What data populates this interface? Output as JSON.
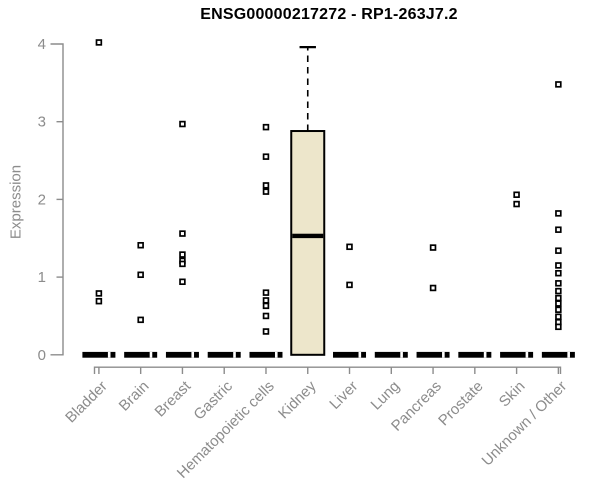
{
  "chart_data": {
    "type": "boxplot",
    "title": "ENSG00000217272 - RP1-263J7.2",
    "xlabel": "",
    "ylabel": "Expression",
    "ylim": [
      0,
      4
    ],
    "yticks": [
      0,
      1,
      2,
      3,
      4
    ],
    "categories": [
      "Bladder",
      "Brain",
      "Breast",
      "Gastric",
      "Hematopoietic cells",
      "Kidney",
      "Liver",
      "Lung",
      "Pancreas",
      "Prostate",
      "Skin",
      "Unknown / Other"
    ],
    "boxes": [
      {
        "category": "Bladder",
        "q1": 0,
        "median": 0,
        "q3": 0,
        "whisker_low": 0,
        "whisker_high": 0,
        "outliers": [
          4.02,
          0.79,
          0.69
        ]
      },
      {
        "category": "Brain",
        "q1": 0,
        "median": 0,
        "q3": 0,
        "whisker_low": 0,
        "whisker_high": 0,
        "outliers": [
          1.41,
          1.03,
          0.45
        ]
      },
      {
        "category": "Breast",
        "q1": 0,
        "median": 0,
        "q3": 0,
        "whisker_low": 0,
        "whisker_high": 0,
        "outliers": [
          2.97,
          1.56,
          1.29,
          1.21,
          1.17,
          0.94
        ]
      },
      {
        "category": "Gastric",
        "q1": 0,
        "median": 0,
        "q3": 0,
        "whisker_low": 0,
        "whisker_high": 0,
        "outliers": []
      },
      {
        "category": "Hematopoietic cells",
        "q1": 0,
        "median": 0,
        "q3": 0,
        "whisker_low": 0,
        "whisker_high": 0,
        "outliers": [
          2.93,
          2.55,
          2.18,
          2.1,
          0.8,
          0.7,
          0.63,
          0.5,
          0.3
        ]
      },
      {
        "category": "Kidney",
        "q1": 0,
        "median": 1.53,
        "q3": 2.88,
        "whisker_low": 0,
        "whisker_high": 3.96,
        "outliers": []
      },
      {
        "category": "Liver",
        "q1": 0,
        "median": 0,
        "q3": 0,
        "whisker_low": 0,
        "whisker_high": 0,
        "outliers": [
          1.39,
          0.9
        ]
      },
      {
        "category": "Lung",
        "q1": 0,
        "median": 0,
        "q3": 0,
        "whisker_low": 0,
        "whisker_high": 0,
        "outliers": []
      },
      {
        "category": "Pancreas",
        "q1": 0,
        "median": 0,
        "q3": 0,
        "whisker_low": 0,
        "whisker_high": 0,
        "outliers": [
          1.38,
          0.86
        ]
      },
      {
        "category": "Prostate",
        "q1": 0,
        "median": 0,
        "q3": 0,
        "whisker_low": 0,
        "whisker_high": 0,
        "outliers": []
      },
      {
        "category": "Skin",
        "q1": 0,
        "median": 0,
        "q3": 0,
        "whisker_low": 0,
        "whisker_high": 0,
        "outliers": [
          2.06,
          1.94
        ]
      },
      {
        "category": "Unknown / Other",
        "q1": 0,
        "median": 0,
        "q3": 0,
        "whisker_low": 0,
        "whisker_high": 0,
        "outliers": [
          3.48,
          1.82,
          1.61,
          1.34,
          1.15,
          1.05,
          0.92,
          0.82,
          0.73,
          0.66,
          0.58,
          0.49,
          0.42,
          0.36
        ]
      }
    ],
    "colors": {
      "box_fill": "#ede6cb",
      "box_border": "#000000",
      "median": "#000000",
      "outlier": "#000000",
      "axis": "#8c8c8c",
      "tick_label": "#8c8c8c",
      "title": "#000000"
    },
    "layout": {
      "legend": false,
      "grid": false,
      "x_label_rotation_deg": 45
    }
  }
}
